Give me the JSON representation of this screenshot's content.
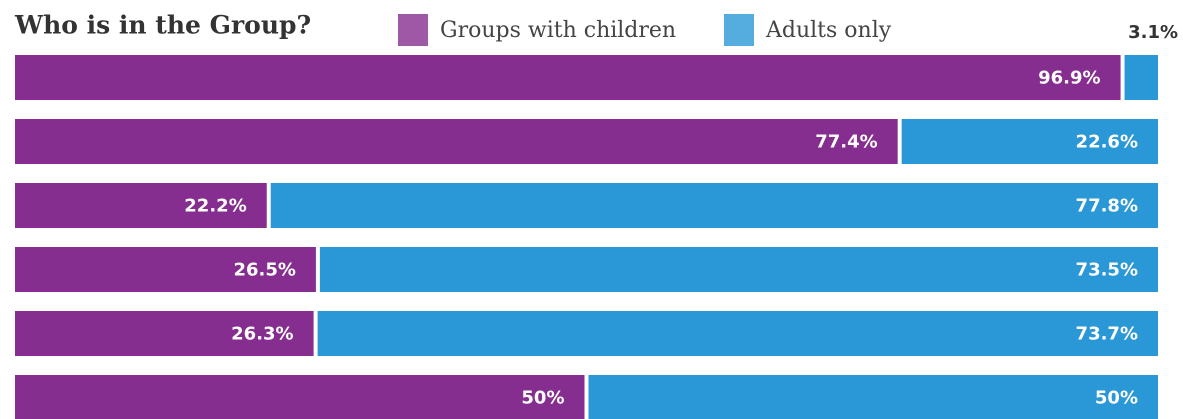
{
  "chart_data": {
    "type": "stacked-bar-horizontal",
    "title": "Who is in the Group?",
    "categories": [
      null,
      null,
      null,
      null,
      null,
      null
    ],
    "series": [
      {
        "name": "Groups with children",
        "color": "#862e8f",
        "values": [
          96.9,
          77.4,
          22.2,
          26.5,
          26.3,
          50
        ],
        "value_labels": [
          "96.9%",
          "77.4%",
          "22.2%",
          "26.5%",
          "26.3%",
          "50%"
        ]
      },
      {
        "name": "Adults only",
        "color": "#2a97d6",
        "values": [
          3.1,
          22.6,
          77.8,
          73.5,
          73.7,
          50
        ],
        "value_labels": [
          "3.1%",
          "22.6%",
          "77.8%",
          "73.5%",
          "73.7%",
          "50%"
        ]
      }
    ],
    "legend": "top"
  }
}
